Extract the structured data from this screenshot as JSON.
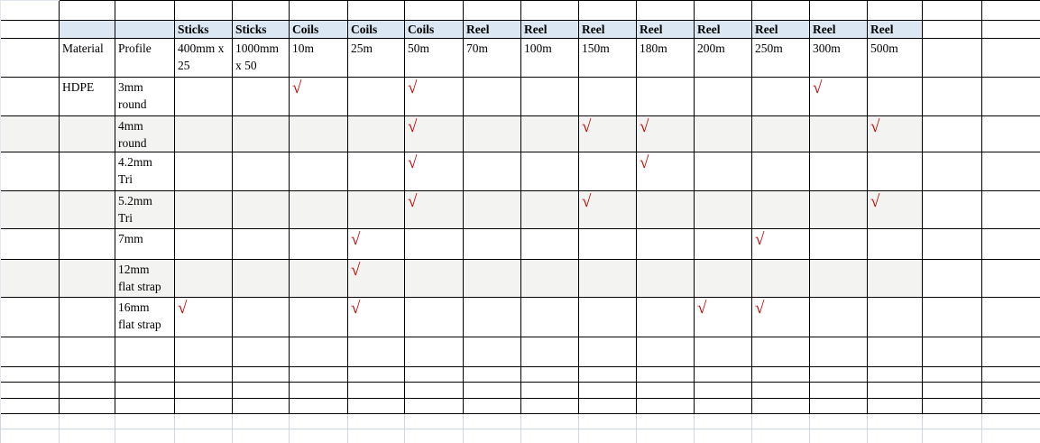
{
  "colors": {
    "header_fill": "#dbe7f2",
    "stripe_fill": "#f3f3f2",
    "check_red": "#c00000",
    "grid_black": "#000000",
    "grid_light": "#cfd7e5"
  },
  "check_symbol": "√",
  "labels": {
    "material_header": "Material",
    "profile_header": "Profile"
  },
  "columns": {
    "groups": [
      {
        "type": "Sticks",
        "size": "400mm x\n25"
      },
      {
        "type": "Sticks",
        "size": "1000mm\nx 50"
      },
      {
        "type": "Coils",
        "size": "10m"
      },
      {
        "type": "Coils",
        "size": "25m"
      },
      {
        "type": "Coils",
        "size": "50m"
      },
      {
        "type": "Reel",
        "size": "70m"
      },
      {
        "type": "Reel",
        "size": "100m"
      },
      {
        "type": "Reel",
        "size": "150m"
      },
      {
        "type": "Reel",
        "size": "180m"
      },
      {
        "type": "Reel",
        "size": "200m"
      },
      {
        "type": "Reel",
        "size": "250m"
      },
      {
        "type": "Reel",
        "size": "300m"
      },
      {
        "type": "Reel",
        "size": "500m"
      }
    ]
  },
  "rows": [
    {
      "material": "HDPE",
      "profile": "3mm\nround",
      "striped": false,
      "checks": [
        "10m",
        "50m",
        "300m"
      ]
    },
    {
      "material": "",
      "profile": "4mm\nround",
      "striped": true,
      "checks": [
        "50m",
        "150m",
        "180m",
        "500m"
      ]
    },
    {
      "material": "",
      "profile": "4.2mm\nTri",
      "striped": false,
      "checks": [
        "50m",
        "180m"
      ]
    },
    {
      "material": "",
      "profile": "5.2mm\nTri",
      "striped": true,
      "checks": [
        "50m",
        "150m",
        "500m"
      ]
    },
    {
      "material": "",
      "profile": "7mm",
      "striped": false,
      "checks": [
        "25m",
        "250m"
      ]
    },
    {
      "material": "",
      "profile": "12mm\nflat strap",
      "striped": true,
      "checks": [
        "25m"
      ]
    },
    {
      "material": "",
      "profile": "16mm\nflat strap",
      "striped": false,
      "checks": [
        "400mm x 25",
        "25m",
        "200m",
        "250m"
      ]
    }
  ]
}
